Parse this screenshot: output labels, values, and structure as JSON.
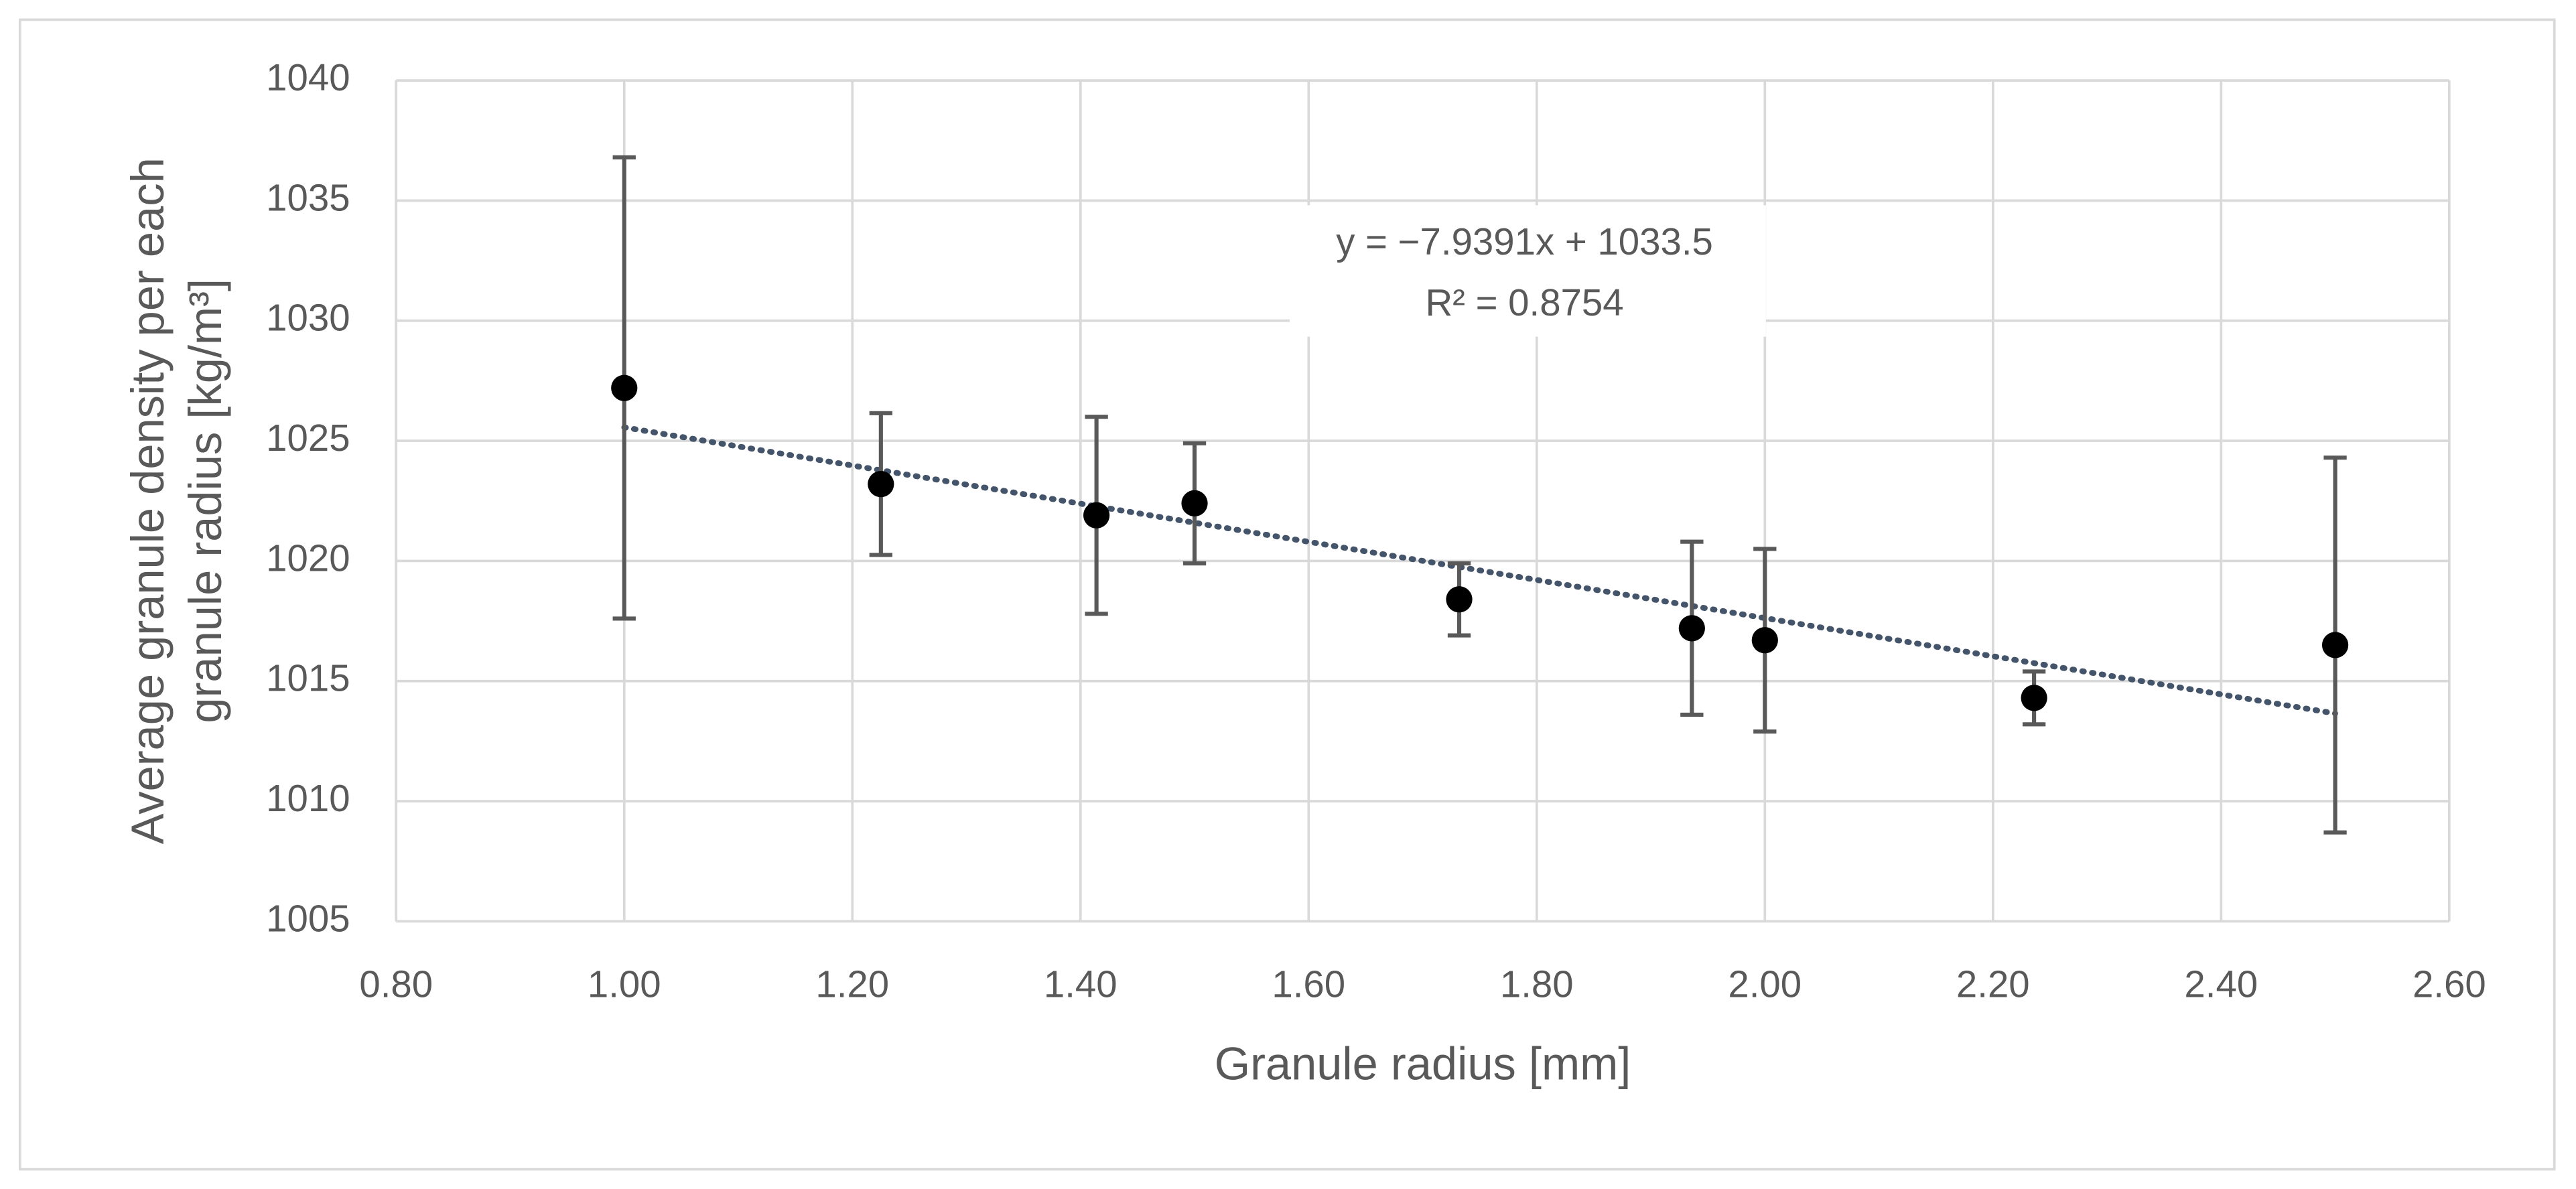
{
  "chart_data": {
    "type": "scatter",
    "xlabel": "Granule radius [mm]",
    "ylabel": [
      "Average granule density per each",
      "granule radius [kg/m³]"
    ],
    "series": [
      {
        "color": "#000000",
        "error_color": "#595959",
        "x": [
          1.0,
          1.225,
          1.414,
          1.5,
          1.732,
          1.936,
          2.0,
          2.236,
          2.5
        ],
        "values": [
          1027.2,
          1023.2,
          1021.9,
          1022.4,
          1018.4,
          1017.2,
          1016.7,
          1014.3,
          1016.5
        ],
        "errors": [
          9.6,
          2.95,
          4.1,
          2.5,
          1.5,
          3.6,
          3.8,
          1.1,
          7.8
        ]
      }
    ],
    "trendline": {
      "slope": -7.9391,
      "intercept": 1033.5,
      "color": "#44546a",
      "label": [
        "y = −7.9391x + 1033.5",
        "R² = 0.8754"
      ]
    },
    "xlim": [
      0.8,
      2.6
    ],
    "xticks": [
      {
        "value": 0.8,
        "label": "0.80"
      },
      {
        "value": 1.0,
        "label": "1.00"
      },
      {
        "value": 1.2,
        "label": "1.20"
      },
      {
        "value": 1.4,
        "label": "1.40"
      },
      {
        "value": 1.6,
        "label": "1.60"
      },
      {
        "value": 1.8,
        "label": "1.80"
      },
      {
        "value": 2.0,
        "label": "2.00"
      },
      {
        "value": 2.2,
        "label": "2.20"
      },
      {
        "value": 2.4,
        "label": "2.40"
      },
      {
        "value": 2.6,
        "label": "2.60"
      }
    ],
    "ylim": [
      1005,
      1040
    ],
    "yticks": [
      1005,
      1010,
      1015,
      1020,
      1025,
      1030,
      1035,
      1040
    ],
    "grid": true
  }
}
